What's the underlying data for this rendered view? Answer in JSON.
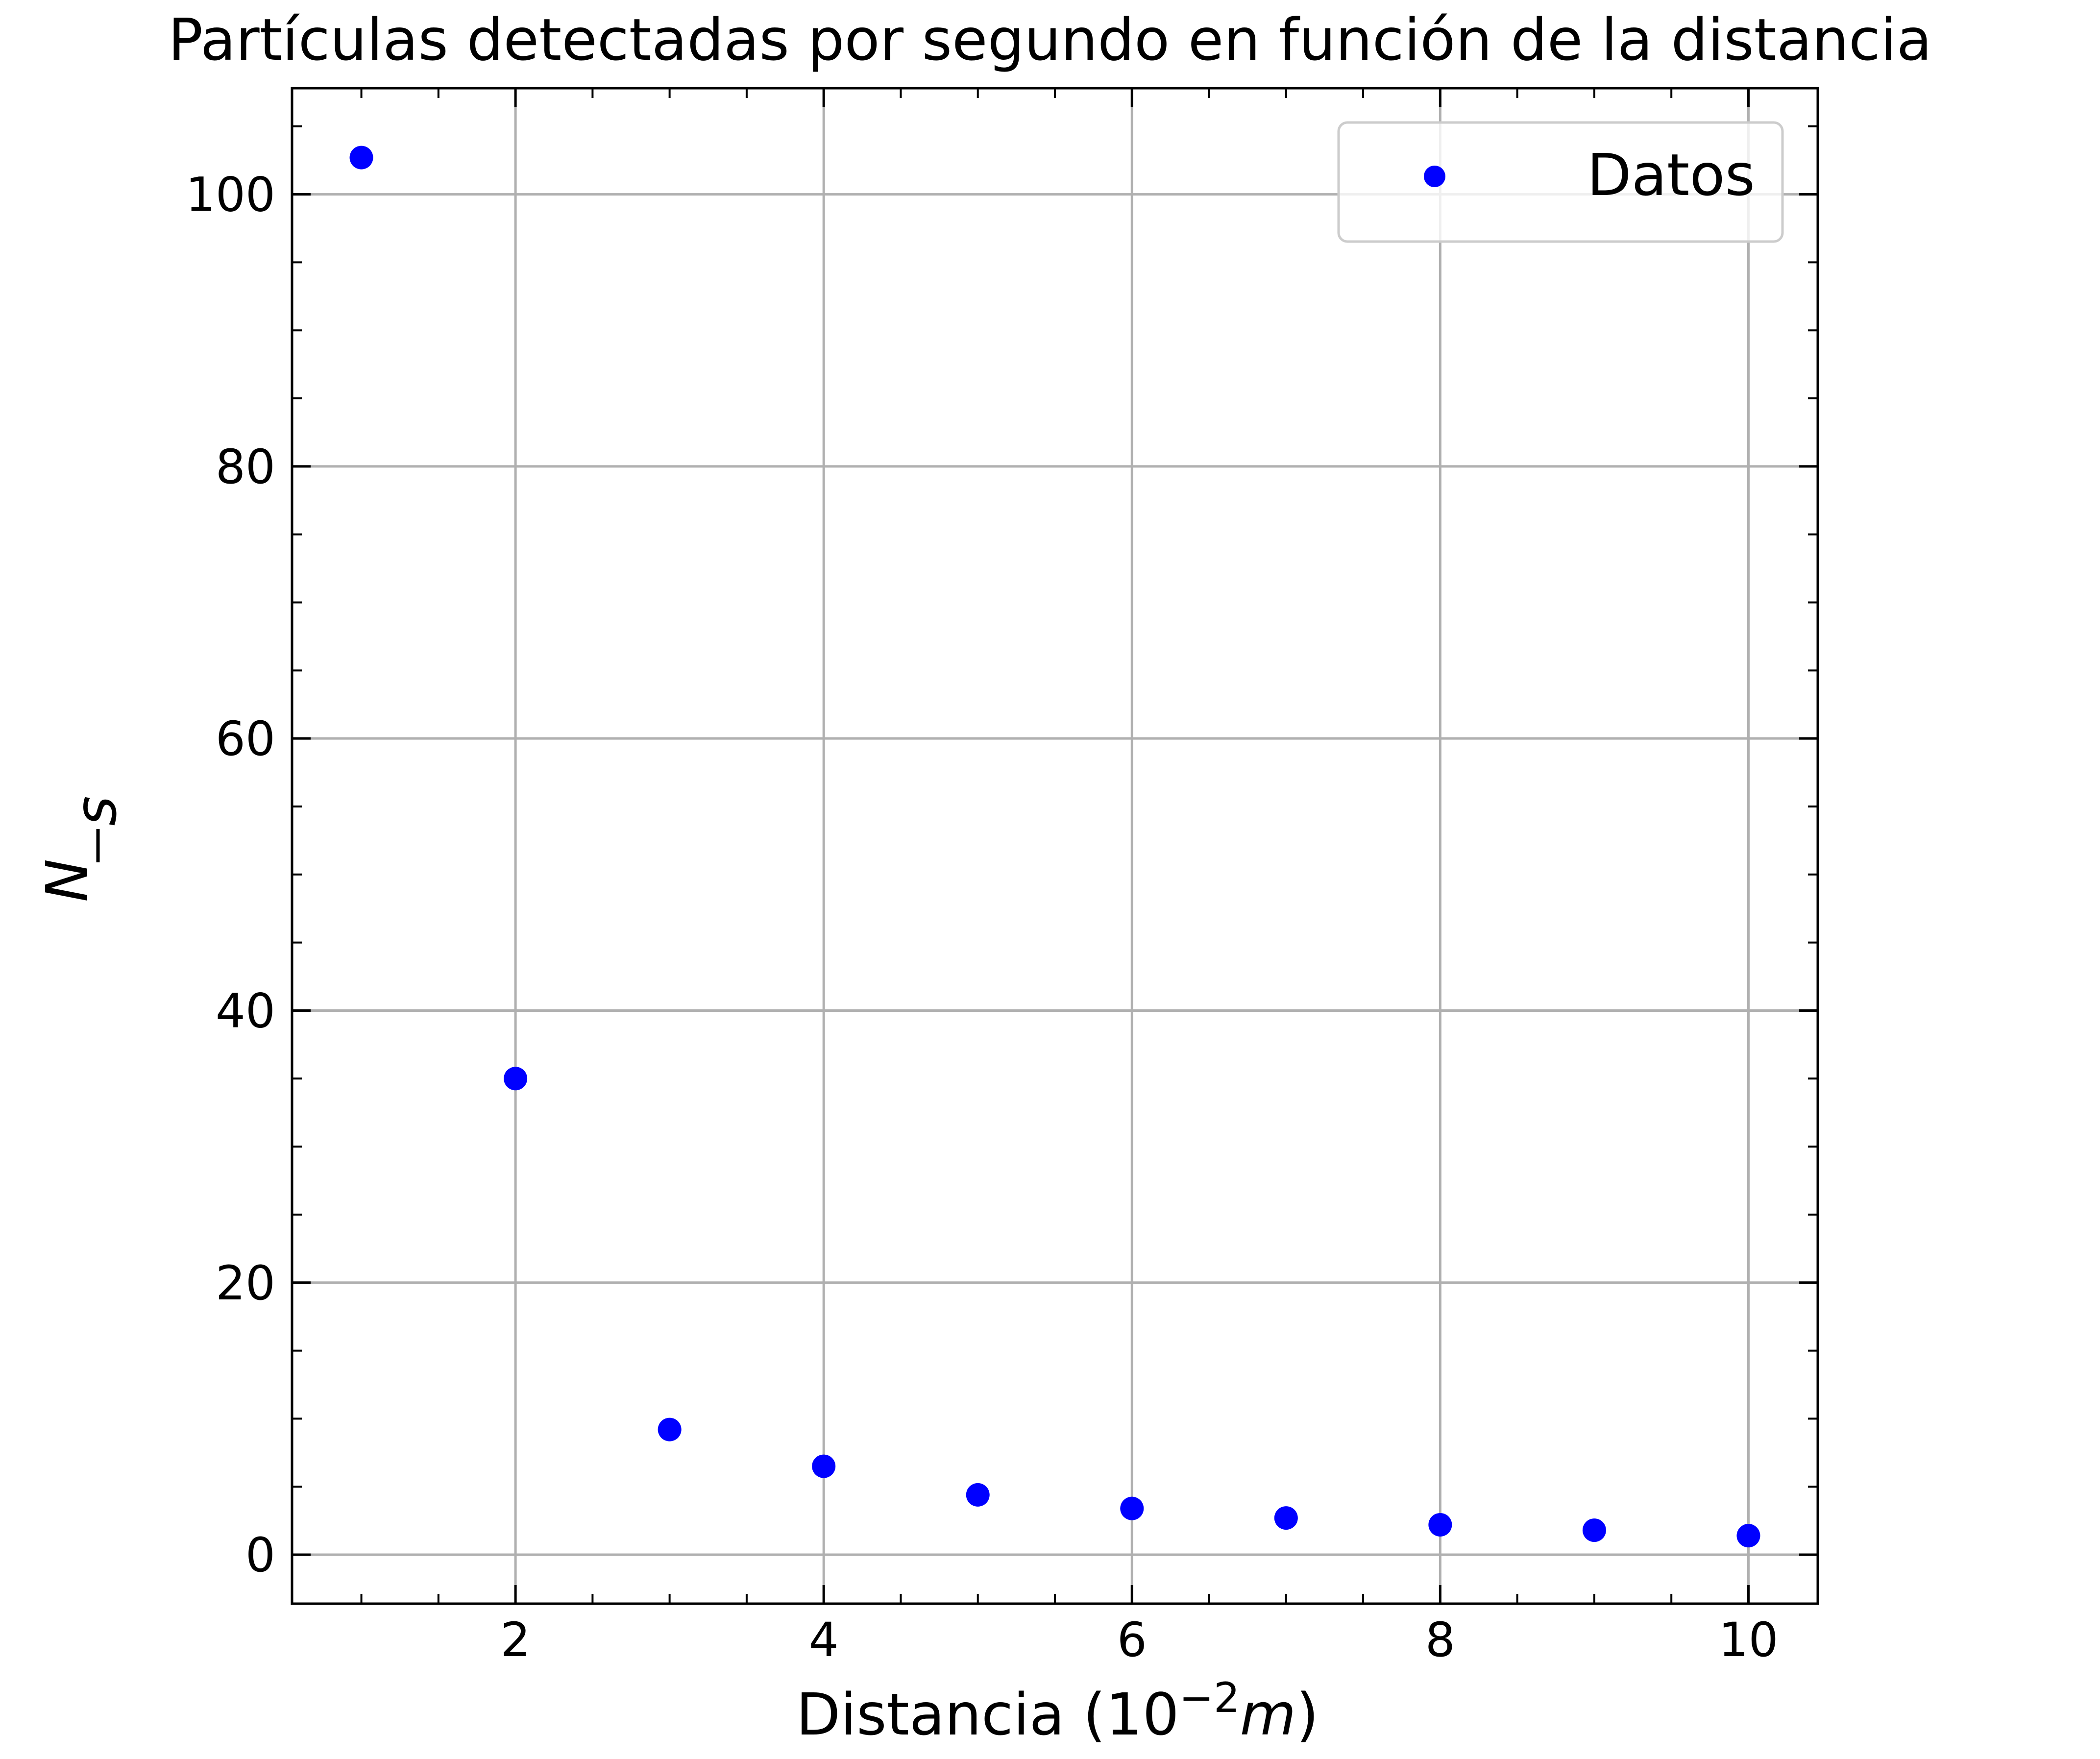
{
  "chart_data": {
    "type": "scatter",
    "title": "Partículas detectadas por segundo en función de la distancia",
    "xlabel": {
      "main": "Distancia (10",
      "sup": "−2",
      "ital": "m",
      "close": ")"
    },
    "ylabel": {
      "num": "N",
      "den": "s"
    },
    "xlim": [
      0.55,
      10.45
    ],
    "ylim": [
      -3.6,
      107.8
    ],
    "xticks": [
      2,
      4,
      6,
      8,
      10
    ],
    "yticks": [
      0,
      20,
      40,
      60,
      80,
      100
    ],
    "xminor_step": 0.5,
    "yminor_step": 5,
    "grid": true,
    "legend": {
      "position": "top-right",
      "entries": [
        "Datos"
      ]
    },
    "series": [
      {
        "name": "Datos",
        "color": "#0000ff",
        "x": [
          1,
          2,
          3,
          4,
          5,
          6,
          7,
          8,
          9,
          10
        ],
        "y": [
          102.7,
          35.0,
          9.2,
          6.5,
          4.4,
          3.4,
          2.7,
          2.2,
          1.8,
          1.4
        ]
      }
    ]
  }
}
